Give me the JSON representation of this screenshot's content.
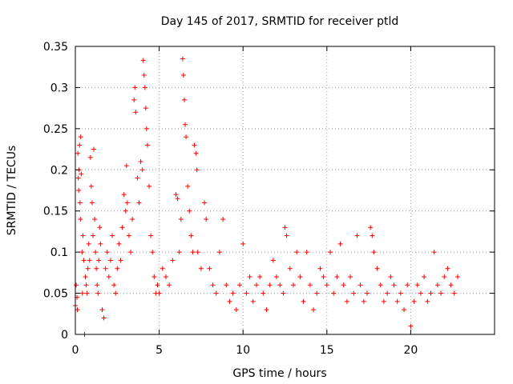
{
  "chart_data": {
    "type": "scatter",
    "title": "Day 145 of 2017, SRMTID for receiver ptld",
    "xlabel": "GPS time / hours",
    "ylabel": "SRMTID / TECUs",
    "xlim": [
      0,
      25
    ],
    "ylim": [
      0,
      0.35
    ],
    "xticks": [
      0,
      5,
      10,
      15,
      20
    ],
    "xtick_labels": [
      "0",
      "5",
      "10",
      "15",
      "20"
    ],
    "yticks": [
      0,
      0.05,
      0.1,
      0.15,
      0.2,
      0.25,
      0.3,
      0.35
    ],
    "ytick_labels": [
      "0",
      "0.05",
      "0.1",
      "0.15",
      "0.2",
      "0.25",
      "0.3",
      "0.35"
    ],
    "grid": true,
    "marker": "+",
    "series": [
      {
        "name": "SRMTID",
        "color": "#ff0000",
        "points": [
          [
            0.0,
            0.035
          ],
          [
            0.05,
            0.06
          ],
          [
            0.1,
            0.045
          ],
          [
            0.12,
            0.03
          ],
          [
            0.15,
            0.22
          ],
          [
            0.18,
            0.19
          ],
          [
            0.2,
            0.175
          ],
          [
            0.22,
            0.2
          ],
          [
            0.25,
            0.23
          ],
          [
            0.28,
            0.16
          ],
          [
            0.3,
            0.14
          ],
          [
            0.32,
            0.24
          ],
          [
            0.35,
            0.195
          ],
          [
            0.4,
            0.1
          ],
          [
            0.42,
            0.05
          ],
          [
            0.45,
            0.12
          ],
          [
            0.5,
            0.09
          ],
          [
            0.55,
            0.0
          ],
          [
            0.6,
            0.07
          ],
          [
            0.65,
            0.06
          ],
          [
            0.7,
            0.05
          ],
          [
            0.75,
            0.08
          ],
          [
            0.8,
            0.11
          ],
          [
            0.85,
            0.09
          ],
          [
            0.9,
            0.215
          ],
          [
            0.95,
            0.18
          ],
          [
            1.0,
            0.16
          ],
          [
            1.05,
            0.12
          ],
          [
            1.1,
            0.225
          ],
          [
            1.15,
            0.14
          ],
          [
            1.2,
            0.1
          ],
          [
            1.25,
            0.08
          ],
          [
            1.3,
            0.06
          ],
          [
            1.35,
            0.05
          ],
          [
            1.4,
            0.09
          ],
          [
            1.45,
            0.13
          ],
          [
            1.5,
            0.11
          ],
          [
            1.6,
            0.03
          ],
          [
            1.7,
            0.02
          ],
          [
            1.8,
            0.08
          ],
          [
            1.9,
            0.1
          ],
          [
            2.0,
            0.07
          ],
          [
            2.1,
            0.09
          ],
          [
            2.2,
            0.12
          ],
          [
            2.3,
            0.06
          ],
          [
            2.4,
            0.05
          ],
          [
            2.5,
            0.08
          ],
          [
            2.6,
            0.11
          ],
          [
            2.7,
            0.09
          ],
          [
            2.8,
            0.13
          ],
          [
            2.9,
            0.17
          ],
          [
            3.0,
            0.15
          ],
          [
            3.05,
            0.205
          ],
          [
            3.1,
            0.16
          ],
          [
            3.2,
            0.12
          ],
          [
            3.3,
            0.1
          ],
          [
            3.4,
            0.14
          ],
          [
            3.5,
            0.285
          ],
          [
            3.55,
            0.3
          ],
          [
            3.6,
            0.27
          ],
          [
            3.7,
            0.19
          ],
          [
            3.8,
            0.16
          ],
          [
            3.9,
            0.21
          ],
          [
            4.0,
            0.2
          ],
          [
            4.05,
            0.333
          ],
          [
            4.1,
            0.315
          ],
          [
            4.15,
            0.3
          ],
          [
            4.2,
            0.275
          ],
          [
            4.25,
            0.25
          ],
          [
            4.3,
            0.23
          ],
          [
            4.4,
            0.18
          ],
          [
            4.5,
            0.12
          ],
          [
            4.6,
            0.1
          ],
          [
            4.7,
            0.07
          ],
          [
            4.8,
            0.05
          ],
          [
            4.9,
            0.06
          ],
          [
            5.0,
            0.05
          ],
          [
            5.2,
            0.08
          ],
          [
            5.4,
            0.07
          ],
          [
            5.6,
            0.06
          ],
          [
            5.8,
            0.09
          ],
          [
            6.0,
            0.17
          ],
          [
            6.1,
            0.165
          ],
          [
            6.2,
            0.1
          ],
          [
            6.3,
            0.14
          ],
          [
            6.4,
            0.335
          ],
          [
            6.45,
            0.315
          ],
          [
            6.5,
            0.285
          ],
          [
            6.55,
            0.255
          ],
          [
            6.6,
            0.24
          ],
          [
            6.7,
            0.18
          ],
          [
            6.8,
            0.15
          ],
          [
            6.9,
            0.12
          ],
          [
            7.0,
            0.1
          ],
          [
            7.1,
            0.23
          ],
          [
            7.2,
            0.22
          ],
          [
            7.25,
            0.2
          ],
          [
            7.3,
            0.1
          ],
          [
            7.5,
            0.08
          ],
          [
            7.7,
            0.16
          ],
          [
            7.8,
            0.14
          ],
          [
            8.0,
            0.08
          ],
          [
            8.2,
            0.06
          ],
          [
            8.4,
            0.05
          ],
          [
            8.6,
            0.1
          ],
          [
            8.8,
            0.14
          ],
          [
            9.0,
            0.06
          ],
          [
            9.2,
            0.04
          ],
          [
            9.4,
            0.05
          ],
          [
            9.6,
            0.03
          ],
          [
            9.8,
            0.06
          ],
          [
            10.0,
            0.11
          ],
          [
            10.2,
            0.05
          ],
          [
            10.4,
            0.07
          ],
          [
            10.6,
            0.04
          ],
          [
            10.8,
            0.06
          ],
          [
            11.0,
            0.07
          ],
          [
            11.2,
            0.05
          ],
          [
            11.4,
            0.03
          ],
          [
            11.6,
            0.06
          ],
          [
            11.8,
            0.09
          ],
          [
            12.0,
            0.07
          ],
          [
            12.2,
            0.06
          ],
          [
            12.4,
            0.05
          ],
          [
            12.5,
            0.13
          ],
          [
            12.6,
            0.12
          ],
          [
            12.8,
            0.08
          ],
          [
            13.0,
            0.06
          ],
          [
            13.2,
            0.1
          ],
          [
            13.4,
            0.07
          ],
          [
            13.6,
            0.04
          ],
          [
            13.8,
            0.1
          ],
          [
            14.0,
            0.06
          ],
          [
            14.2,
            0.03
          ],
          [
            14.4,
            0.05
          ],
          [
            14.6,
            0.08
          ],
          [
            14.8,
            0.07
          ],
          [
            15.0,
            0.06
          ],
          [
            15.2,
            0.1
          ],
          [
            15.4,
            0.05
          ],
          [
            15.6,
            0.07
          ],
          [
            15.8,
            0.11
          ],
          [
            16.0,
            0.06
          ],
          [
            16.2,
            0.04
          ],
          [
            16.4,
            0.07
          ],
          [
            16.6,
            0.05
          ],
          [
            16.8,
            0.12
          ],
          [
            17.0,
            0.06
          ],
          [
            17.2,
            0.04
          ],
          [
            17.4,
            0.05
          ],
          [
            17.6,
            0.13
          ],
          [
            17.7,
            0.12
          ],
          [
            17.8,
            0.1
          ],
          [
            18.0,
            0.08
          ],
          [
            18.2,
            0.06
          ],
          [
            18.4,
            0.04
          ],
          [
            18.6,
            0.05
          ],
          [
            18.8,
            0.07
          ],
          [
            19.0,
            0.06
          ],
          [
            19.2,
            0.04
          ],
          [
            19.4,
            0.05
          ],
          [
            19.6,
            0.03
          ],
          [
            19.8,
            0.06
          ],
          [
            20.0,
            0.01
          ],
          [
            20.2,
            0.04
          ],
          [
            20.4,
            0.06
          ],
          [
            20.6,
            0.05
          ],
          [
            20.8,
            0.07
          ],
          [
            21.0,
            0.04
          ],
          [
            21.2,
            0.05
          ],
          [
            21.4,
            0.1
          ],
          [
            21.6,
            0.06
          ],
          [
            21.8,
            0.05
          ],
          [
            22.0,
            0.07
          ],
          [
            22.2,
            0.08
          ],
          [
            22.4,
            0.06
          ],
          [
            22.6,
            0.05
          ],
          [
            22.8,
            0.07
          ]
        ]
      }
    ]
  }
}
